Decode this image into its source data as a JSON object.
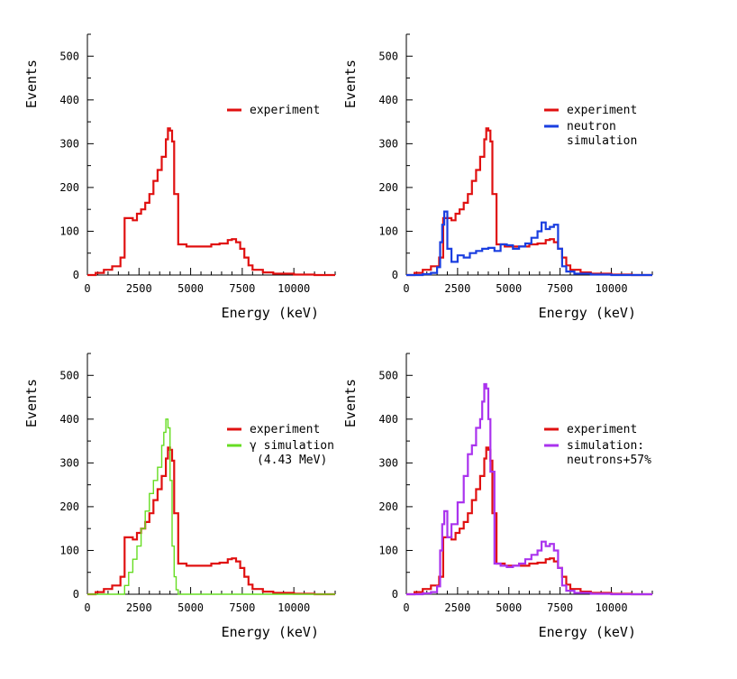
{
  "chart_data": [
    {
      "type": "line",
      "xlabel": "Energy (keV)",
      "ylabel": "Events",
      "xlim": [
        0,
        12000
      ],
      "ylim": [
        0,
        550
      ],
      "xticks": [
        "0",
        "2500",
        "5000",
        "7500",
        "10000"
      ],
      "yticks": [
        "0",
        "100",
        "200",
        "300",
        "400",
        "500"
      ],
      "legend_position": "right",
      "series": [
        {
          "name": "experiment",
          "legend_lines": [
            "experiment"
          ],
          "color": "#e01010",
          "x": [
            0,
            400,
            800,
            1200,
            1600,
            1800,
            2000,
            2200,
            2400,
            2600,
            2800,
            3000,
            3200,
            3400,
            3600,
            3800,
            3900,
            4000,
            4100,
            4200,
            4400,
            4800,
            5200,
            5600,
            6000,
            6400,
            6800,
            7000,
            7200,
            7400,
            7600,
            7800,
            8000,
            8500,
            9000,
            10000,
            11000,
            12000
          ],
          "y": [
            0,
            5,
            12,
            20,
            40,
            130,
            130,
            125,
            140,
            150,
            165,
            185,
            215,
            240,
            270,
            310,
            335,
            330,
            305,
            185,
            70,
            65,
            65,
            65,
            70,
            72,
            80,
            82,
            75,
            60,
            40,
            22,
            12,
            6,
            3,
            1,
            0,
            0
          ]
        }
      ]
    },
    {
      "type": "line",
      "xlabel": "Energy (keV)",
      "ylabel": "Events",
      "xlim": [
        0,
        12000
      ],
      "ylim": [
        0,
        550
      ],
      "xticks": [
        "0",
        "2500",
        "5000",
        "7500",
        "10000"
      ],
      "yticks": [
        "0",
        "100",
        "200",
        "300",
        "400",
        "500"
      ],
      "legend_position": "right",
      "series": [
        {
          "name": "experiment",
          "legend_lines": [
            "experiment"
          ],
          "color": "#e01010",
          "x": [
            0,
            400,
            800,
            1200,
            1600,
            1800,
            2000,
            2200,
            2400,
            2600,
            2800,
            3000,
            3200,
            3400,
            3600,
            3800,
            3900,
            4000,
            4100,
            4200,
            4400,
            4800,
            5200,
            5600,
            6000,
            6400,
            6800,
            7000,
            7200,
            7400,
            7600,
            7800,
            8000,
            8500,
            9000,
            10000,
            11000,
            12000
          ],
          "y": [
            0,
            5,
            12,
            20,
            40,
            130,
            130,
            125,
            140,
            150,
            165,
            185,
            215,
            240,
            270,
            310,
            335,
            330,
            305,
            185,
            70,
            65,
            65,
            65,
            70,
            72,
            80,
            82,
            75,
            60,
            40,
            22,
            12,
            6,
            3,
            1,
            0,
            0
          ]
        },
        {
          "name": "neutron simulation",
          "legend_lines": [
            "neutron",
            "simulation"
          ],
          "color": "#1a3ee0",
          "x": [
            0,
            800,
            1200,
            1500,
            1650,
            1750,
            1850,
            2000,
            2200,
            2500,
            2800,
            3100,
            3400,
            3700,
            4000,
            4300,
            4600,
            4900,
            5200,
            5500,
            5800,
            6100,
            6400,
            6600,
            6800,
            7000,
            7200,
            7400,
            7600,
            7800,
            8200,
            9000,
            10000,
            12000
          ],
          "y": [
            0,
            2,
            5,
            18,
            75,
            115,
            145,
            60,
            30,
            45,
            40,
            50,
            55,
            60,
            62,
            55,
            70,
            68,
            60,
            65,
            72,
            85,
            100,
            120,
            105,
            110,
            115,
            60,
            20,
            8,
            3,
            1,
            0,
            0
          ]
        }
      ]
    },
    {
      "type": "line",
      "xlabel": "Energy (keV)",
      "ylabel": "Events",
      "xlim": [
        0,
        12000
      ],
      "ylim": [
        0,
        550
      ],
      "xticks": [
        "0",
        "2500",
        "5000",
        "7500",
        "10000"
      ],
      "yticks": [
        "0",
        "100",
        "200",
        "300",
        "400",
        "500"
      ],
      "legend_position": "right",
      "series": [
        {
          "name": "experiment",
          "legend_lines": [
            "experiment"
          ],
          "color": "#e01010",
          "x": [
            0,
            400,
            800,
            1200,
            1600,
            1800,
            2000,
            2200,
            2400,
            2600,
            2800,
            3000,
            3200,
            3400,
            3600,
            3800,
            3900,
            4000,
            4100,
            4200,
            4400,
            4800,
            5200,
            5600,
            6000,
            6400,
            6800,
            7000,
            7200,
            7400,
            7600,
            7800,
            8000,
            8500,
            9000,
            10000,
            11000,
            12000
          ],
          "y": [
            0,
            5,
            12,
            20,
            40,
            130,
            130,
            125,
            140,
            150,
            165,
            185,
            215,
            240,
            270,
            310,
            335,
            330,
            305,
            185,
            70,
            65,
            65,
            65,
            70,
            72,
            80,
            82,
            75,
            60,
            40,
            22,
            12,
            6,
            3,
            1,
            0,
            0
          ]
        },
        {
          "name": "γ simulation (4.43 MeV)",
          "legend_lines": [
            "γ simulation",
            "(4.43 MeV)"
          ],
          "color": "#66dd22",
          "x": [
            0,
            1500,
            1800,
            2000,
            2200,
            2400,
            2600,
            2800,
            3000,
            3200,
            3400,
            3600,
            3700,
            3800,
            3900,
            4000,
            4100,
            4200,
            4300,
            4400,
            5000,
            12000
          ],
          "y": [
            0,
            0,
            20,
            50,
            80,
            110,
            150,
            190,
            230,
            260,
            290,
            340,
            370,
            400,
            380,
            260,
            110,
            40,
            10,
            0,
            0,
            0
          ]
        }
      ]
    },
    {
      "type": "line",
      "xlabel": "Energy (keV)",
      "ylabel": "Events",
      "xlim": [
        0,
        12000
      ],
      "ylim": [
        0,
        550
      ],
      "xticks": [
        "0",
        "2500",
        "5000",
        "7500",
        "10000"
      ],
      "yticks": [
        "0",
        "100",
        "200",
        "300",
        "400",
        "500"
      ],
      "legend_position": "right",
      "series": [
        {
          "name": "experiment",
          "legend_lines": [
            "experiment"
          ],
          "color": "#e01010",
          "x": [
            0,
            400,
            800,
            1200,
            1600,
            1800,
            2000,
            2200,
            2400,
            2600,
            2800,
            3000,
            3200,
            3400,
            3600,
            3800,
            3900,
            4000,
            4100,
            4200,
            4400,
            4800,
            5200,
            5600,
            6000,
            6400,
            6800,
            7000,
            7200,
            7400,
            7600,
            7800,
            8000,
            8500,
            9000,
            10000,
            11000,
            12000
          ],
          "y": [
            0,
            5,
            12,
            20,
            40,
            130,
            130,
            125,
            140,
            150,
            165,
            185,
            215,
            240,
            270,
            310,
            335,
            330,
            305,
            185,
            70,
            65,
            65,
            65,
            70,
            72,
            80,
            82,
            75,
            60,
            40,
            22,
            12,
            6,
            3,
            1,
            0,
            0
          ]
        },
        {
          "name": "simulation: neutrons+57%",
          "legend_lines": [
            "simulation:",
            "neutrons+57%"
          ],
          "color": "#aa33ee",
          "x": [
            0,
            800,
            1200,
            1500,
            1650,
            1750,
            1850,
            2000,
            2200,
            2500,
            2800,
            3000,
            3200,
            3400,
            3600,
            3700,
            3800,
            3900,
            4000,
            4100,
            4300,
            4600,
            4900,
            5200,
            5500,
            5800,
            6100,
            6400,
            6600,
            6800,
            7000,
            7200,
            7400,
            7600,
            7800,
            8200,
            9000,
            10000,
            12000
          ],
          "y": [
            0,
            2,
            5,
            18,
            100,
            160,
            190,
            130,
            160,
            210,
            270,
            320,
            340,
            380,
            400,
            440,
            480,
            470,
            400,
            280,
            70,
            65,
            62,
            65,
            70,
            80,
            90,
            100,
            120,
            110,
            115,
            100,
            60,
            20,
            8,
            3,
            1,
            0,
            0
          ]
        }
      ]
    }
  ]
}
